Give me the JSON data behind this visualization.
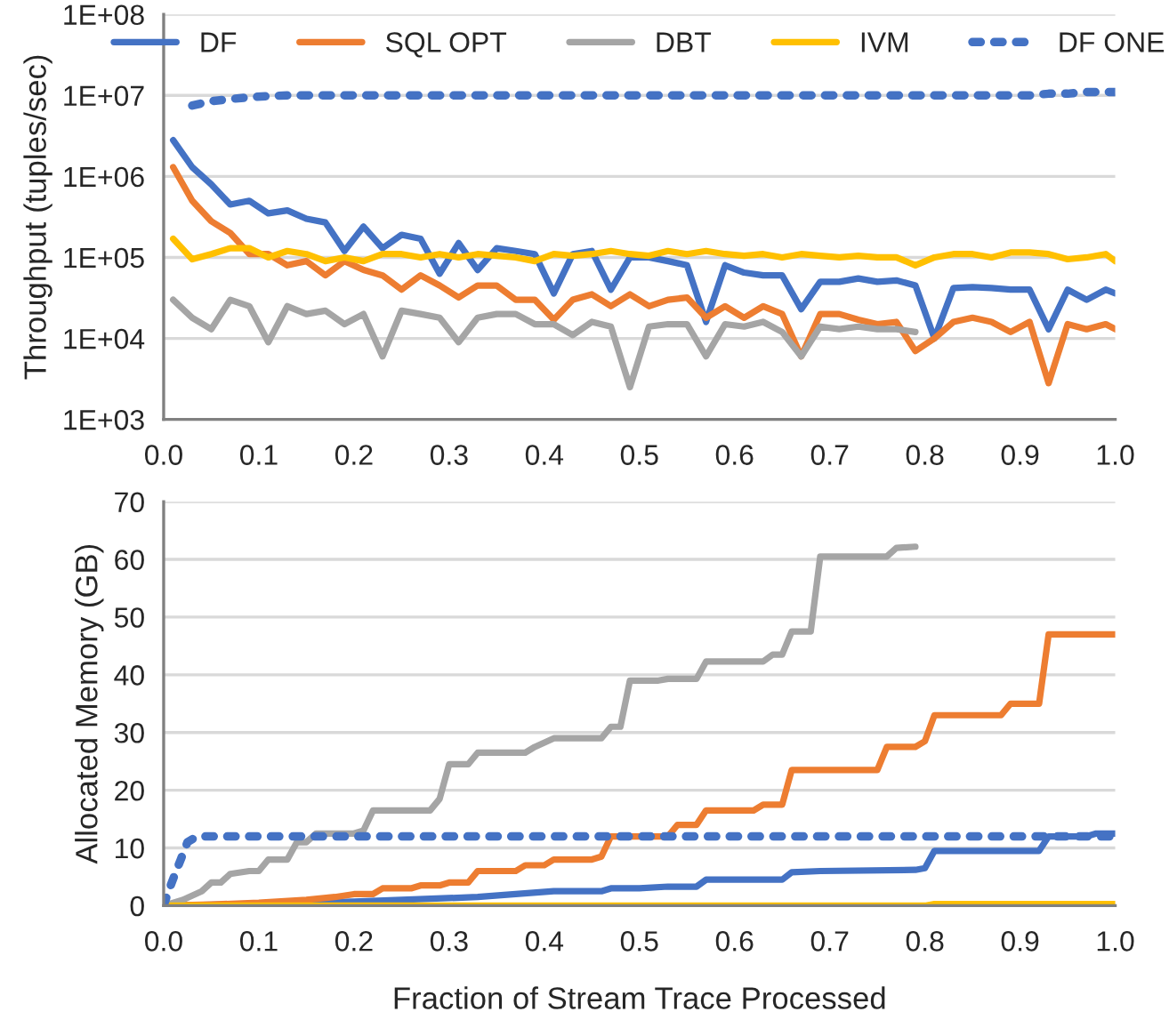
{
  "chart_data": [
    {
      "type": "line",
      "ylabel": "Throughput (tuples/sec)",
      "log": "y",
      "grid": "y",
      "legend": "top",
      "marker": "none",
      "x": [
        0.01,
        0.03,
        0.05,
        0.07,
        0.09,
        0.11,
        0.13,
        0.15,
        0.17,
        0.19,
        0.21,
        0.23,
        0.25,
        0.27,
        0.29,
        0.31,
        0.33,
        0.35,
        0.37,
        0.39,
        0.41,
        0.43,
        0.45,
        0.47,
        0.49,
        0.51,
        0.53,
        0.55,
        0.57,
        0.59,
        0.61,
        0.63,
        0.65,
        0.67,
        0.69,
        0.71,
        0.73,
        0.75,
        0.77,
        0.79,
        0.81,
        0.83,
        0.85,
        0.87,
        0.89,
        0.91,
        0.93,
        0.95,
        0.97,
        0.99,
        1.0
      ],
      "xlim": [
        0,
        1
      ],
      "xticks": [
        {
          "value": 0,
          "label": "0.0"
        },
        {
          "value": 0.1,
          "label": "0.1"
        },
        {
          "value": 0.2,
          "label": "0.2"
        },
        {
          "value": 0.3,
          "label": "0.3"
        },
        {
          "value": 0.4,
          "label": "0.4"
        },
        {
          "value": 0.5,
          "label": "0.5"
        },
        {
          "value": 0.6,
          "label": "0.6"
        },
        {
          "value": 0.7,
          "label": "0.7"
        },
        {
          "value": 0.8,
          "label": "0.8"
        },
        {
          "value": 0.9,
          "label": "0.9"
        },
        {
          "value": 1,
          "label": "1.0"
        }
      ],
      "ylim": [
        1000,
        100000000
      ],
      "yticks": [
        {
          "value": 1000,
          "label": "1E+03"
        },
        {
          "value": 10000,
          "label": "1E+04"
        },
        {
          "value": 100000,
          "label": "1E+05"
        },
        {
          "value": 1000000,
          "label": "1E+06"
        },
        {
          "value": 10000000,
          "label": "1E+07"
        },
        {
          "value": 100000000,
          "label": "1E+08"
        }
      ],
      "series": [
        {
          "name": "DF",
          "color": "#4472c4",
          "values": [
            2800000,
            1300000,
            800000,
            450000,
            500000,
            350000,
            380000,
            300000,
            270000,
            120000,
            240000,
            130000,
            190000,
            170000,
            63000,
            150000,
            70000,
            130000,
            120000,
            110000,
            36000,
            110000,
            120000,
            40000,
            100000,
            100000,
            90000,
            80000,
            16000,
            80000,
            65000,
            60000,
            60000,
            23000,
            50000,
            50000,
            55000,
            50000,
            52000,
            45000,
            10000,
            42000,
            43000,
            42000,
            40000,
            40000,
            13000,
            40000,
            30000,
            40000,
            36000
          ]
        },
        {
          "name": "SQL OPT",
          "color": "#ed7d31",
          "values": [
            1300000,
            500000,
            280000,
            200000,
            110000,
            110000,
            80000,
            90000,
            60000,
            90000,
            70000,
            60000,
            40000,
            60000,
            45000,
            32000,
            45000,
            45000,
            30000,
            30000,
            17000,
            30000,
            35000,
            25000,
            35000,
            25000,
            30000,
            32000,
            18000,
            25000,
            18000,
            25000,
            20000,
            6000,
            20000,
            20000,
            17000,
            15000,
            16000,
            7000,
            10000,
            16000,
            18000,
            16000,
            12000,
            16000,
            2800,
            15000,
            13000,
            15000,
            13000
          ]
        },
        {
          "name": "DBT",
          "color": "#a5a5a5",
          "values": [
            30000,
            18000,
            13000,
            30000,
            25000,
            9000,
            25000,
            20000,
            22000,
            15000,
            20000,
            6000,
            22000,
            20000,
            18000,
            9000,
            18000,
            20000,
            20000,
            15000,
            15000,
            11000,
            16000,
            14000,
            2500,
            14000,
            15000,
            15000,
            6000,
            15000,
            14000,
            16000,
            12000,
            6000,
            14000,
            13000,
            14000,
            13000,
            13000,
            12000,
            null,
            null,
            null,
            null,
            null,
            null,
            null,
            null,
            null,
            null,
            null
          ]
        },
        {
          "name": "IVM",
          "color": "#ffc000",
          "values": [
            170000,
            95000,
            110000,
            130000,
            130000,
            100000,
            120000,
            110000,
            90000,
            100000,
            90000,
            110000,
            110000,
            100000,
            110000,
            100000,
            110000,
            105000,
            100000,
            90000,
            110000,
            105000,
            110000,
            120000,
            110000,
            105000,
            120000,
            110000,
            120000,
            110000,
            105000,
            110000,
            100000,
            110000,
            105000,
            100000,
            105000,
            100000,
            100000,
            80000,
            100000,
            110000,
            110000,
            100000,
            115000,
            115000,
            110000,
            95000,
            100000,
            110000,
            90000
          ]
        },
        {
          "name": "DF ONE",
          "color": "#4472c4",
          "line_style": "dotted",
          "values": [
            null,
            7500000,
            8500000,
            9000000,
            9500000,
            9800000,
            10000000,
            10000000,
            10000000,
            10000000,
            10000000,
            10000000,
            10000000,
            10000000,
            10000000,
            10000000,
            10000000,
            10000000,
            10000000,
            10000000,
            10000000,
            10000000,
            10000000,
            10000000,
            10000000,
            10000000,
            10000000,
            10000000,
            10000000,
            10000000,
            10000000,
            10000000,
            10000000,
            10000000,
            10000000,
            10000000,
            10000000,
            10000000,
            10000000,
            10000000,
            10000000,
            10000000,
            10000000,
            10000000,
            10000000,
            10000000,
            10500000,
            10500000,
            11000000,
            11000000,
            11000000
          ]
        }
      ]
    },
    {
      "type": "line",
      "ylabel": "Allocated Memory (GB)",
      "xlabel": "Fraction of Stream Trace Processed",
      "grid": "y",
      "marker": "none",
      "xlim": [
        0,
        1
      ],
      "xticks": [
        {
          "value": 0,
          "label": "0.0"
        },
        {
          "value": 0.1,
          "label": "0.1"
        },
        {
          "value": 0.2,
          "label": "0.2"
        },
        {
          "value": 0.3,
          "label": "0.3"
        },
        {
          "value": 0.4,
          "label": "0.4"
        },
        {
          "value": 0.5,
          "label": "0.5"
        },
        {
          "value": 0.6,
          "label": "0.6"
        },
        {
          "value": 0.7,
          "label": "0.7"
        },
        {
          "value": 0.8,
          "label": "0.8"
        },
        {
          "value": 0.9,
          "label": "0.9"
        },
        {
          "value": 1,
          "label": "1.0"
        }
      ],
      "ylim": [
        0,
        70
      ],
      "yticks": [
        0,
        10,
        20,
        30,
        40,
        50,
        60,
        70
      ],
      "series": [
        {
          "color": "#4472c4",
          "x": [
            0,
            0.1,
            0.2,
            0.25,
            0.33,
            0.41,
            0.46,
            0.47,
            0.5,
            0.53,
            0.56,
            0.57,
            0.65,
            0.66,
            0.69,
            0.79,
            0.8,
            0.81,
            0.92,
            0.93,
            0.97,
            0.98,
            1.0
          ],
          "values": [
            0,
            0.3,
            0.7,
            1,
            1.5,
            2.5,
            2.5,
            3,
            3,
            3.3,
            3.3,
            4.5,
            4.5,
            5.8,
            6,
            6.2,
            6.5,
            9.5,
            9.5,
            12,
            12,
            12.5,
            12.5
          ]
        },
        {
          "color": "#ed7d31",
          "x": [
            0,
            0.05,
            0.1,
            0.15,
            0.18,
            0.2,
            0.22,
            0.23,
            0.26,
            0.27,
            0.29,
            0.3,
            0.32,
            0.33,
            0.37,
            0.38,
            0.4,
            0.41,
            0.45,
            0.46,
            0.47,
            0.53,
            0.54,
            0.56,
            0.57,
            0.62,
            0.63,
            0.65,
            0.66,
            0.75,
            0.76,
            0.79,
            0.8,
            0.81,
            0.88,
            0.89,
            0.92,
            0.93,
            1.0
          ],
          "values": [
            0,
            0.2,
            0.5,
            1,
            1.5,
            2,
            2,
            3,
            3,
            3.5,
            3.5,
            4,
            4,
            6,
            6,
            7,
            7,
            8,
            8,
            8.5,
            12,
            12,
            14,
            14,
            16.5,
            16.5,
            17.5,
            17.5,
            23.5,
            23.5,
            27.5,
            27.5,
            28.5,
            33,
            33,
            35,
            35,
            47,
            47
          ]
        },
        {
          "color": "#a5a5a5",
          "x": [
            0,
            0.02,
            0.04,
            0.05,
            0.06,
            0.07,
            0.09,
            0.1,
            0.11,
            0.13,
            0.14,
            0.15,
            0.16,
            0.2,
            0.21,
            0.22,
            0.28,
            0.29,
            0.3,
            0.32,
            0.33,
            0.38,
            0.39,
            0.41,
            0.46,
            0.47,
            0.48,
            0.49,
            0.52,
            0.53,
            0.56,
            0.57,
            0.63,
            0.64,
            0.65,
            0.66,
            0.68,
            0.69,
            0.76,
            0.77,
            0.79
          ],
          "values": [
            0,
            1,
            2.5,
            4,
            4,
            5.5,
            6,
            6,
            8,
            8,
            11,
            11,
            12.5,
            12.5,
            13,
            16.5,
            16.5,
            18.5,
            24.5,
            24.5,
            26.5,
            26.5,
            27.5,
            29,
            29,
            31,
            31,
            39,
            39,
            39.3,
            39.3,
            42.3,
            42.3,
            43.5,
            43.5,
            47.5,
            47.5,
            60.5,
            60.5,
            62,
            62.2
          ]
        },
        {
          "color": "#ffc000",
          "x": [
            0,
            0.8,
            0.81,
            1.0
          ],
          "values": [
            0,
            0,
            0.3,
            0.3
          ]
        },
        {
          "color": "#4472c4",
          "line_style": "dotted",
          "x": [
            0,
            0.005,
            0.012,
            0.018,
            0.025,
            0.035,
            1.0
          ],
          "values": [
            0,
            2.5,
            5.5,
            8,
            11,
            12,
            12
          ]
        }
      ]
    }
  ]
}
